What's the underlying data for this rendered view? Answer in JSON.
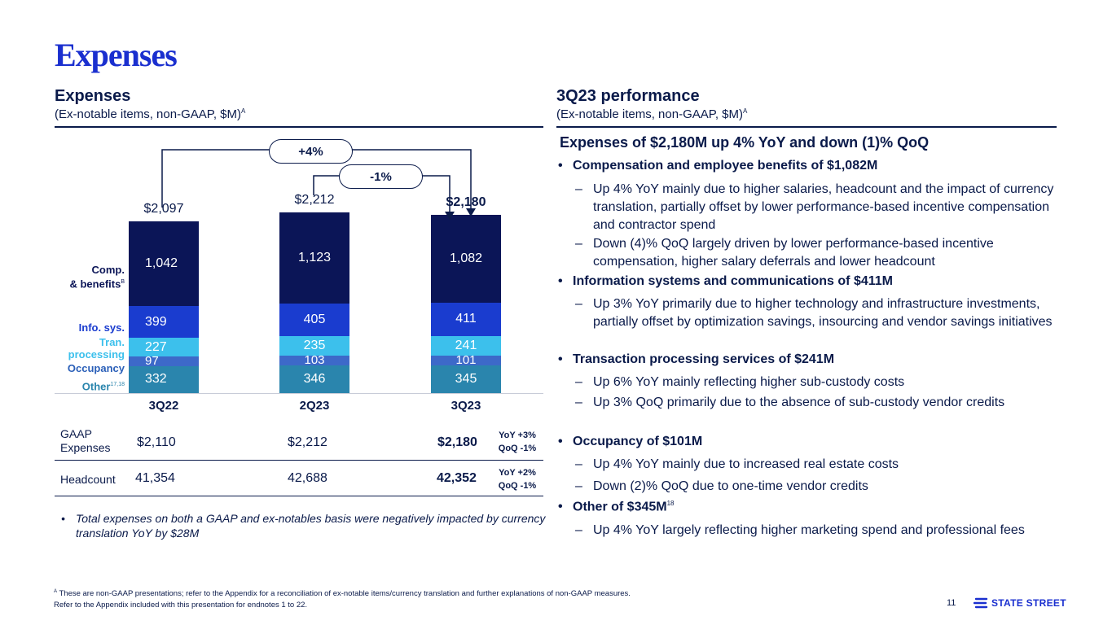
{
  "page": {
    "title": "Expenses",
    "page_number": "11"
  },
  "left": {
    "heading": "Expenses",
    "subheading": "(Ex-notable items, non-GAAP, $M)",
    "subheading_sup": "A"
  },
  "right": {
    "heading": "3Q23 performance",
    "subheading": "(Ex-notable items, non-GAAP, $M)",
    "subheading_sup": "A"
  },
  "chart_data": {
    "type": "bar",
    "stacked": true,
    "title": "Expenses",
    "categories": [
      "3Q22",
      "2Q23",
      "3Q23"
    ],
    "totals": [
      "$2,097",
      "$2,212",
      "$2,180"
    ],
    "series": [
      {
        "name": "Other",
        "name_sup": "17,18",
        "values": [
          332,
          346,
          345
        ],
        "color": "#2a85ad"
      },
      {
        "name": "Occupancy",
        "values": [
          97,
          103,
          101
        ],
        "color": "#3d69c9"
      },
      {
        "name": "Tran. processing",
        "values": [
          227,
          235,
          241
        ],
        "color": "#3cc0ec"
      },
      {
        "name": "Info. sys.",
        "values": [
          399,
          405,
          411
        ],
        "color": "#1a3ccf"
      },
      {
        "name": "Comp. & benefits",
        "name_sup": "B",
        "values": [
          1042,
          1123,
          1082
        ],
        "color": "#0b1557"
      }
    ],
    "segment_labels": {
      "Other": [
        "332",
        "346",
        "345"
      ],
      "Occupancy": [
        "97",
        "103",
        "101"
      ],
      "Tran. processing": [
        "227",
        "235",
        "241"
      ],
      "Info. sys.": [
        "399",
        "405",
        "411"
      ],
      "Comp. & benefits": [
        "1,042",
        "1,123",
        "1,082"
      ]
    },
    "annotations": {
      "yoy": "+4%",
      "qoq": "-1%"
    }
  },
  "legend_labels": {
    "comp_line1": "Comp.",
    "comp_line2": "& benefits",
    "comp_sup": "B",
    "info": "Info. sys.",
    "tran_line1": "Tran.",
    "tran_line2": "processing",
    "occupancy": "Occupancy",
    "other": "Other",
    "other_sup": "17,18"
  },
  "table": {
    "gaap_label_line1": "GAAP",
    "gaap_label_line2": "Expenses",
    "gaap_values": [
      "$2,110",
      "$2,212",
      "$2,180"
    ],
    "gaap_change_yoy": "YoY +3%",
    "gaap_change_qoq": "QoQ -1%",
    "headcount_label": "Headcount",
    "headcount_values": [
      "41,354",
      "42,688",
      "42,352"
    ],
    "headcount_change_yoy": "YoY +2%",
    "headcount_change_qoq": "QoQ -1%"
  },
  "note": "Total expenses on both a GAAP and ex-notables basis were negatively impacted by currency translation YoY by $28M",
  "performance": {
    "headline": "Expenses of $2,180M up 4% YoY and down (1)% QoQ",
    "items": [
      {
        "title": "Compensation and employee benefits of $1,082M",
        "subs": [
          "Up 4% YoY mainly due to higher salaries, headcount and the impact of currency translation, partially offset by lower performance-based incentive compensation and contractor spend",
          "Down (4)% QoQ largely driven by lower performance-based incentive compensation, higher salary deferrals and lower headcount"
        ]
      },
      {
        "title": "Information systems and communications of $411M",
        "subs": [
          "Up 3% YoY primarily due to higher technology and infrastructure investments, partially offset by optimization savings, insourcing and vendor savings initiatives"
        ]
      },
      {
        "title": "Transaction processing services of $241M",
        "subs": [
          "Up 6% YoY mainly reflecting higher sub-custody costs",
          "Up 3% QoQ primarily due to the absence of sub-custody vendor credits"
        ]
      },
      {
        "title": "Occupancy of $101M",
        "subs": [
          "Up 4% YoY mainly due to increased real estate costs",
          "Down (2)% QoQ due to one-time vendor credits"
        ]
      },
      {
        "title": "Other of $345M",
        "title_sup": "18",
        "subs": [
          "Up 4% YoY largely reflecting higher marketing spend and professional fees"
        ]
      }
    ]
  },
  "footnotes": {
    "line1_sup": "A",
    "line1": "These are non-GAAP presentations; refer to the Appendix for a reconciliation of ex-notable items/currency translation and further explanations of non-GAAP measures.",
    "line2": "Refer to the Appendix included with this presentation for endnotes 1 to 22."
  },
  "logo": {
    "text": "STATE STREET"
  },
  "colors": {
    "brand": "#1a2fcf",
    "navy": "#0a1a4a"
  }
}
